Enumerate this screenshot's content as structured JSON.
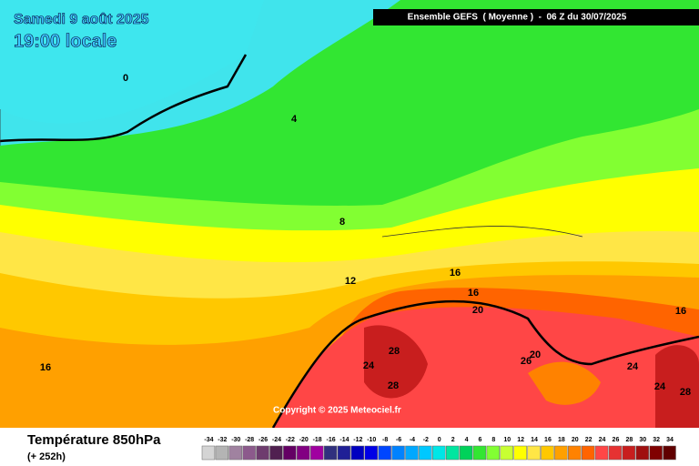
{
  "header": {
    "date": "Samedi 9 août 2025",
    "time": "19:00 locale",
    "model": "Ensemble GEFS  ( Moyenne )  -  06 Z du 30/07/2025"
  },
  "map": {
    "copyright": "Copyright © 2025 Meteociel.fr",
    "contour_labels": [
      0,
      4,
      8,
      12,
      16,
      16,
      16,
      20,
      20,
      24,
      28,
      28,
      26,
      24,
      24,
      28,
      16
    ]
  },
  "footer": {
    "variable": "Température 850hPa",
    "lead": "(+ 252h)"
  },
  "legend": {
    "labels": [
      -34,
      -32,
      -30,
      -28,
      -26,
      -24,
      -22,
      -20,
      -18,
      -16,
      -14,
      -12,
      -10,
      -8,
      -6,
      -4,
      -2,
      0,
      2,
      4,
      6,
      8,
      10,
      12,
      14,
      16,
      18,
      20,
      22,
      24,
      26,
      28,
      30,
      32,
      34
    ],
    "colors": [
      "#d4d4d4",
      "#b4b4b4",
      "#a082a0",
      "#8c5a8c",
      "#6e3c6e",
      "#502050",
      "#640064",
      "#820082",
      "#a000a0",
      "#30307e",
      "#202096",
      "#0000c0",
      "#0000e6",
      "#0046ff",
      "#0082ff",
      "#00a8ff",
      "#00c8ff",
      "#00e6e6",
      "#00e6a0",
      "#00d25a",
      "#32e632",
      "#82ff32",
      "#c8ff32",
      "#ffff00",
      "#ffe646",
      "#ffc800",
      "#ffa000",
      "#ff8200",
      "#ff6400",
      "#ff4646",
      "#e63232",
      "#c81e1e",
      "#a01010",
      "#800000",
      "#600000"
    ]
  }
}
